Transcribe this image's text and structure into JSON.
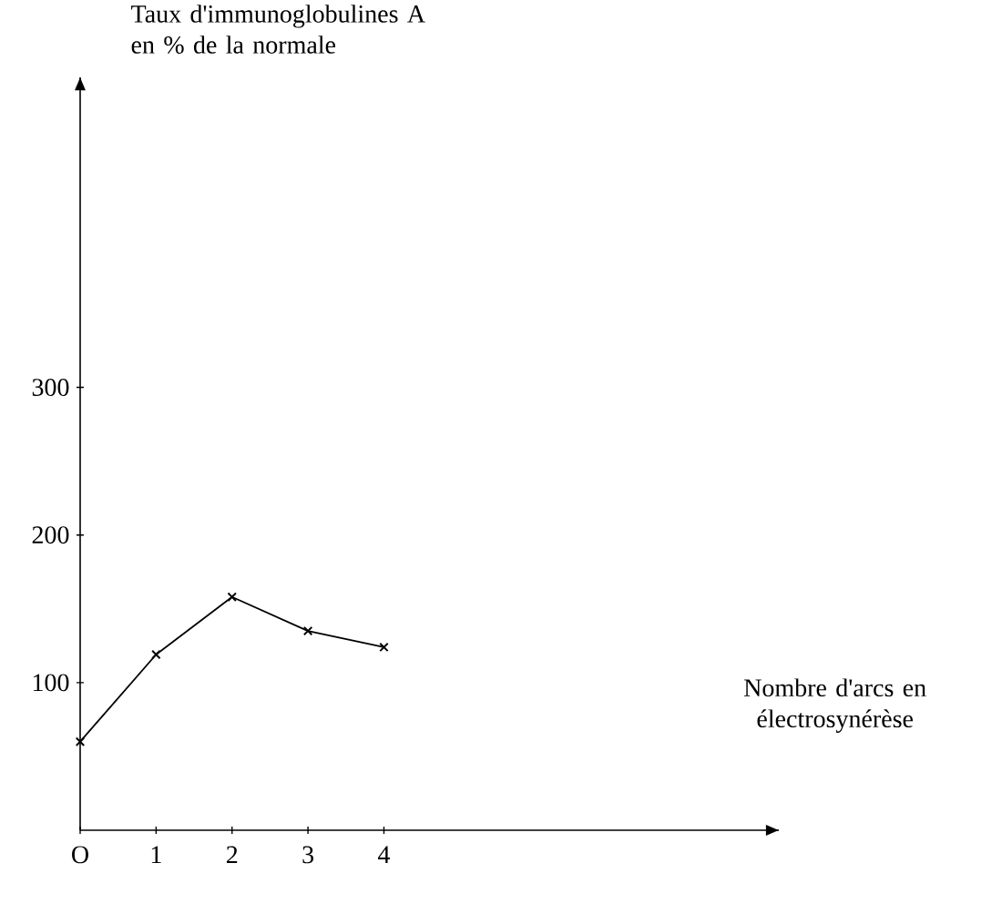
{
  "chart_data": {
    "type": "line",
    "xlabel": "Nombre d'arcs en électrosynérèse",
    "ylabel": "Taux d'immunoglobulines A en % de la normale",
    "x": [
      0,
      1,
      2,
      3,
      4
    ],
    "series": [
      {
        "color": "#000000",
        "values": [
          60,
          119,
          158,
          135,
          124
        ]
      }
    ],
    "xlim": [
      0,
      9.2
    ],
    "ylim": [
      0,
      510
    ],
    "xticks": [
      {
        "value": 0,
        "label": "O"
      },
      1,
      2,
      3,
      4
    ],
    "yticks": [
      100,
      200,
      300
    ],
    "marker": "cross",
    "line_style": "solid"
  }
}
